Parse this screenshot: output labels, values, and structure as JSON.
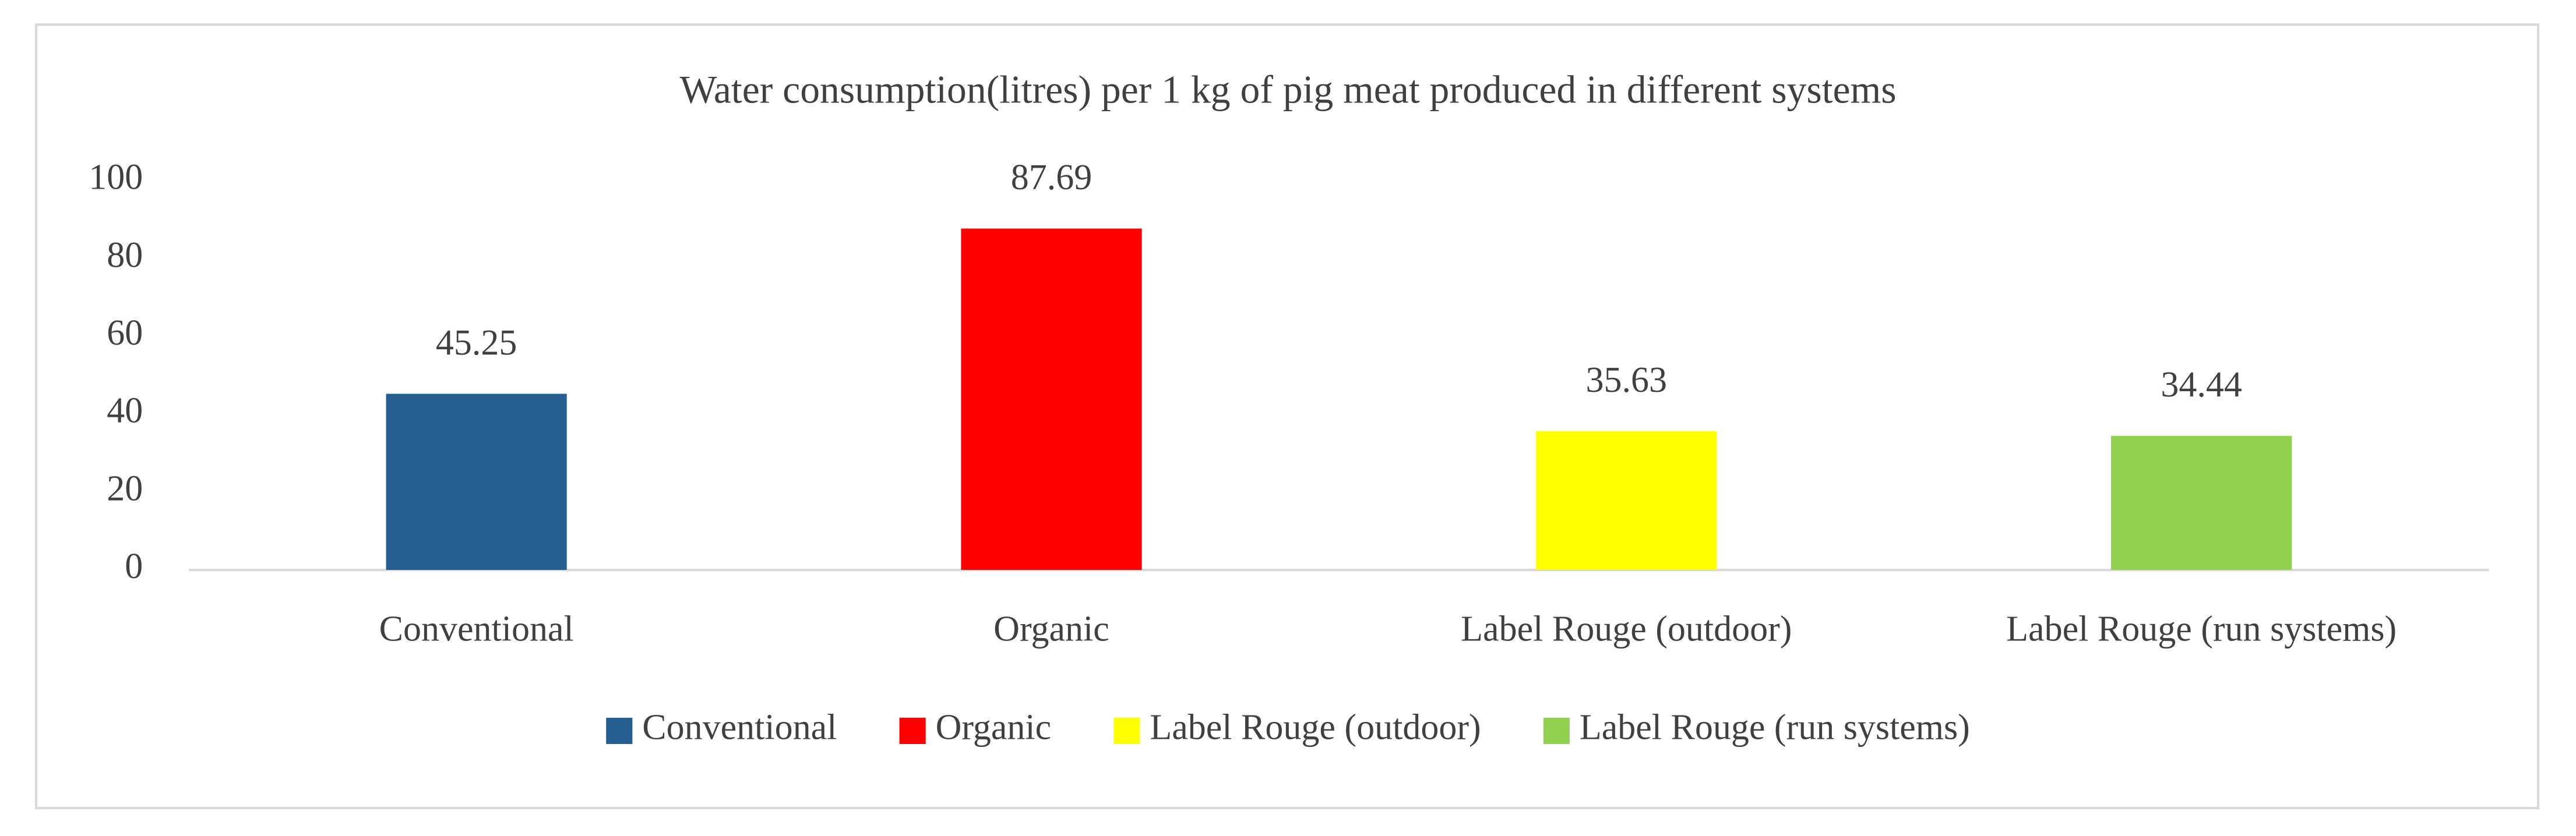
{
  "chart_data": {
    "type": "bar",
    "title": "Water consumption(litres) per 1 kg of pig meat produced in different systems",
    "categories": [
      "Conventional",
      "Organic",
      "Label Rouge (outdoor)",
      "Label Rouge (run systems)"
    ],
    "values": [
      45.25,
      87.69,
      35.63,
      34.44
    ],
    "colors": [
      "#255e91",
      "#ff0000",
      "#ffff00",
      "#92d050"
    ],
    "ylim": [
      0,
      100
    ],
    "yticks": [
      0,
      20,
      40,
      60,
      80,
      100
    ],
    "grid": false,
    "legend": "bottom",
    "data_labels": true
  }
}
